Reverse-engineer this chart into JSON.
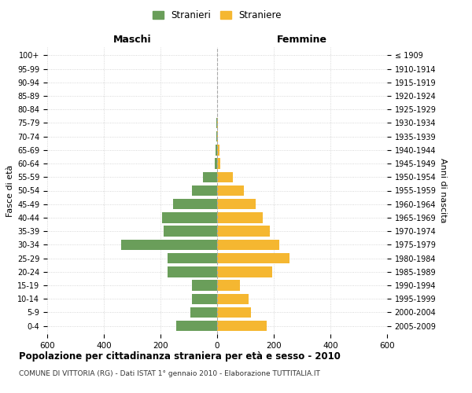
{
  "age_groups": [
    "0-4",
    "5-9",
    "10-14",
    "15-19",
    "20-24",
    "25-29",
    "30-34",
    "35-39",
    "40-44",
    "45-49",
    "50-54",
    "55-59",
    "60-64",
    "65-69",
    "70-74",
    "75-79",
    "80-84",
    "85-89",
    "90-94",
    "95-99",
    "100+"
  ],
  "birth_years": [
    "2005-2009",
    "2000-2004",
    "1995-1999",
    "1990-1994",
    "1985-1989",
    "1980-1984",
    "1975-1979",
    "1970-1974",
    "1965-1969",
    "1960-1964",
    "1955-1959",
    "1950-1954",
    "1945-1949",
    "1940-1944",
    "1935-1939",
    "1930-1934",
    "1925-1929",
    "1920-1924",
    "1915-1919",
    "1910-1914",
    "≤ 1909"
  ],
  "maschi": [
    145,
    95,
    90,
    90,
    175,
    175,
    340,
    190,
    195,
    155,
    90,
    50,
    8,
    5,
    2,
    2,
    0,
    0,
    0,
    0,
    0
  ],
  "femmine": [
    175,
    120,
    110,
    80,
    195,
    255,
    220,
    185,
    160,
    135,
    95,
    55,
    10,
    8,
    3,
    2,
    0,
    0,
    0,
    0,
    0
  ],
  "color_maschi": "#6a9e5a",
  "color_femmine": "#f5b731",
  "header_left": "Maschi",
  "header_right": "Femmine",
  "ylabel_left": "Fasce di età",
  "ylabel_right": "Anni di nascita",
  "xlim": 600,
  "title": "Popolazione per cittadinanza straniera per età e sesso - 2010",
  "subtitle": "COMUNE DI VITTORIA (RG) - Dati ISTAT 1° gennaio 2010 - Elaborazione TUTTITALIA.IT",
  "legend_maschi": "Stranieri",
  "legend_femmine": "Straniere",
  "background_color": "#ffffff",
  "grid_color": "#cccccc"
}
